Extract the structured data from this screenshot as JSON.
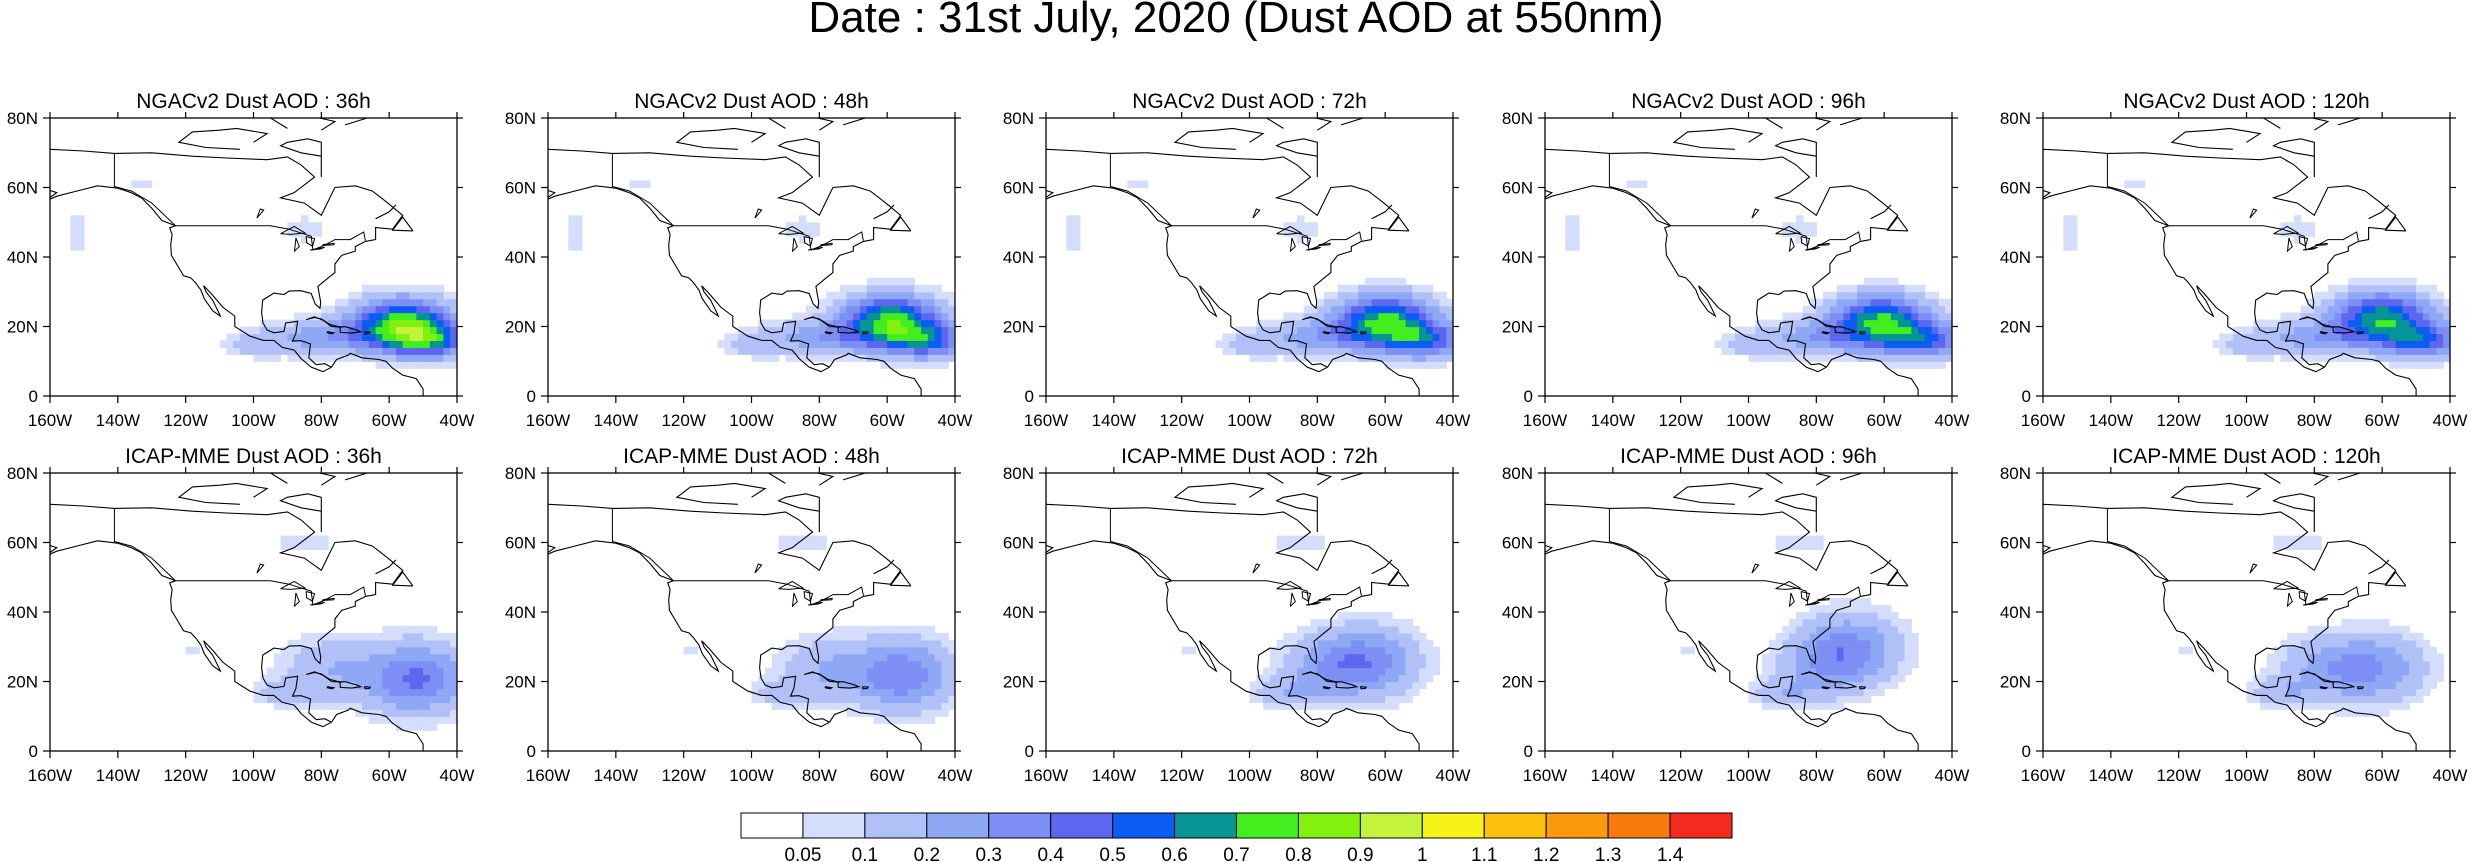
{
  "title": "Date : 31st July, 2020 (Dust AOD at 550nm)",
  "rows": [
    {
      "model": "NGACv2",
      "panels": [
        {
          "title": "NGACv2 Dust AOD : 36h",
          "lead": "36h",
          "plume": {
            "lon": -56,
            "lat": 21,
            "peak": 0.75
          }
        },
        {
          "title": "NGACv2 Dust AOD : 48h",
          "lead": "48h",
          "plume": {
            "lon": -59,
            "lat": 22,
            "peak": 0.72
          }
        },
        {
          "title": "NGACv2 Dust AOD : 72h",
          "lead": "72h",
          "plume": {
            "lon": -60,
            "lat": 22,
            "peak": 0.7
          }
        },
        {
          "title": "NGACv2 Dust AOD : 96h",
          "lead": "96h",
          "plume": {
            "lon": -61,
            "lat": 22,
            "peak": 0.68
          }
        },
        {
          "title": "NGACv2 Dust AOD : 120h",
          "lead": "120h",
          "plume": {
            "lon": -60,
            "lat": 23,
            "peak": 0.65
          }
        }
      ]
    },
    {
      "model": "ICAP-MME",
      "panels": [
        {
          "title": "ICAP-MME Dust AOD : 36h",
          "lead": "36h",
          "plume": {
            "lon": -52,
            "lat": 21,
            "peak": 0.42
          }
        },
        {
          "title": "ICAP-MME Dust AOD : 48h",
          "lead": "48h",
          "plume": {
            "lon": -55,
            "lat": 22,
            "peak": 0.38
          }
        },
        {
          "title": "ICAP-MME Dust AOD : 72h",
          "lead": "72h",
          "plume": {
            "lon": -65,
            "lat": 26,
            "peak": 0.33
          }
        },
        {
          "title": "ICAP-MME Dust AOD : 96h",
          "lead": "96h",
          "plume": {
            "lon": -70,
            "lat": 30,
            "peak": 0.3
          }
        },
        {
          "title": "ICAP-MME Dust AOD : 120h",
          "lead": "120h",
          "plume": {
            "lon": -62,
            "lat": 24,
            "peak": 0.28
          }
        }
      ]
    }
  ],
  "axes": {
    "x_ticks": [
      "160W",
      "140W",
      "120W",
      "100W",
      "80W",
      "60W",
      "40W"
    ],
    "x_tick_values": [
      -160,
      -140,
      -120,
      -100,
      -80,
      -60,
      -40
    ],
    "y_ticks": [
      "0",
      "20N",
      "40N",
      "60N",
      "80N"
    ],
    "y_tick_values": [
      0,
      20,
      40,
      60,
      80
    ],
    "lon_range": [
      -160,
      -40
    ],
    "lat_range": [
      0,
      80
    ]
  },
  "colorbar": {
    "labels": [
      "0.05",
      "0.1",
      "0.2",
      "0.3",
      "0.4",
      "0.5",
      "0.6",
      "0.7",
      "0.8",
      "0.9",
      "1",
      "1.1",
      "1.2",
      "1.3",
      "1.4"
    ],
    "levels": [
      0.05,
      0.1,
      0.2,
      0.3,
      0.4,
      0.5,
      0.6,
      0.7,
      0.8,
      0.9,
      1.0,
      1.1,
      1.2,
      1.3,
      1.4
    ],
    "colors": [
      "#ffffff",
      "#d4ddfb",
      "#b1c1f8",
      "#8fa8f5",
      "#7d8ef5",
      "#5d66ef",
      "#0b5cf2",
      "#069494",
      "#43ee1f",
      "#83f00e",
      "#c3f33d",
      "#f7f316",
      "#fbbf0d",
      "#fa9a0c",
      "#f77a0b",
      "#f52a1e"
    ]
  }
}
